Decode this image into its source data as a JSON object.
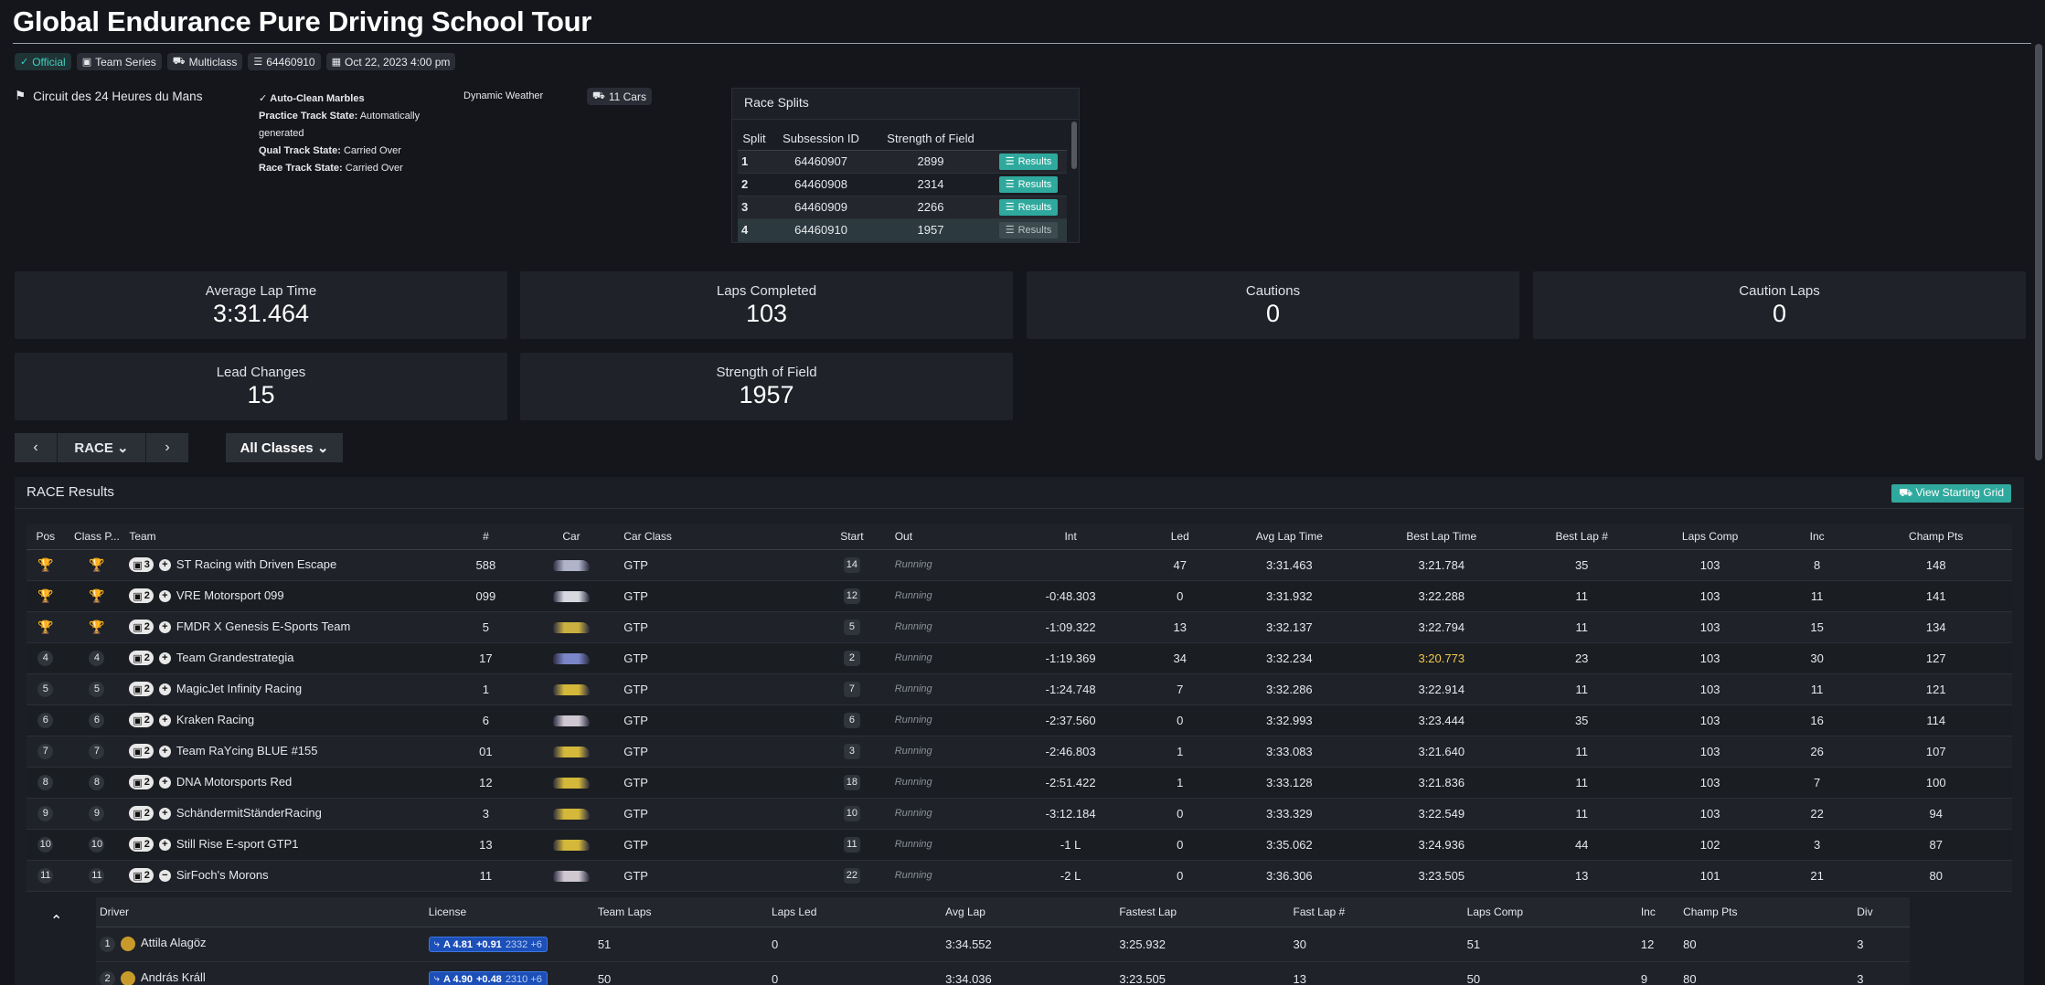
{
  "title": "Global Endurance Pure Driving School Tour",
  "badges": {
    "official": "Official",
    "series": "Team Series",
    "multiclass": "Multiclass",
    "session_id": "64460910",
    "date": "Oct 22, 2023 4:00 pm"
  },
  "info": {
    "track": "Circuit des 24 Heures du Mans",
    "marbles": "Auto-Clean Marbles",
    "practice_label": "Practice Track State:",
    "practice_value": "Automatically generated",
    "qual_label": "Qual Track State:",
    "qual_value": "Carried Over",
    "race_label": "Race Track State:",
    "race_value": "Carried Over",
    "weather": "Dynamic Weather",
    "cars": "11 Cars"
  },
  "splits": {
    "title": "Race Splits",
    "headers": [
      "Split",
      "Subsession ID",
      "Strength of Field",
      ""
    ],
    "button_label": "Results",
    "rows": [
      {
        "split": "1",
        "id": "64460907",
        "sof": "2899"
      },
      {
        "split": "2",
        "id": "64460908",
        "sof": "2314"
      },
      {
        "split": "3",
        "id": "64460909",
        "sof": "2266"
      },
      {
        "split": "4",
        "id": "64460910",
        "sof": "1957"
      }
    ]
  },
  "stats": [
    {
      "label": "Average Lap Time",
      "value": "3:31.464"
    },
    {
      "label": "Laps Completed",
      "value": "103"
    },
    {
      "label": "Cautions",
      "value": "0"
    },
    {
      "label": "Caution Laps",
      "value": "0"
    },
    {
      "label": "Lead Changes",
      "value": "15"
    },
    {
      "label": "Strength of Field",
      "value": "1957"
    }
  ],
  "selector": {
    "session": "RACE",
    "classes": "All Classes"
  },
  "results": {
    "title": "RACE Results",
    "grid_button": "View Starting Grid",
    "headers": [
      "Pos",
      "Class P...",
      "Team",
      "#",
      "Car",
      "Car Class",
      "Start",
      "Out",
      "Int",
      "Led",
      "Avg Lap Time",
      "Best Lap Time",
      "Best Lap #",
      "Laps Comp",
      "Inc",
      "Champ Pts"
    ],
    "rows": [
      {
        "pos": "1",
        "cpos": "1",
        "drivers": "3",
        "team": "ST Racing with Driven Escape",
        "num": "588",
        "car_color": "#b0b4c8",
        "cls": "GTP",
        "start": "14",
        "out": "Running",
        "int": "",
        "led": "47",
        "avg": "3:31.463",
        "best": "3:21.784",
        "bestlap": "35",
        "laps": "103",
        "inc": "8",
        "pts": "148"
      },
      {
        "pos": "2",
        "cpos": "2",
        "drivers": "2",
        "team": "VRE Motorsport 099",
        "num": "099",
        "car_color": "#d8d8e0",
        "cls": "GTP",
        "start": "12",
        "out": "Running",
        "int": "-0:48.303",
        "led": "0",
        "avg": "3:31.932",
        "best": "3:22.288",
        "bestlap": "11",
        "laps": "103",
        "inc": "11",
        "pts": "141"
      },
      {
        "pos": "3",
        "cpos": "3",
        "drivers": "2",
        "team": "FMDR X Genesis E-Sports Team",
        "num": "5",
        "car_color": "#c9b040",
        "cls": "GTP",
        "start": "5",
        "out": "Running",
        "int": "-1:09.322",
        "led": "13",
        "avg": "3:32.137",
        "best": "3:22.794",
        "bestlap": "11",
        "laps": "103",
        "inc": "15",
        "pts": "134"
      },
      {
        "pos": "4",
        "cpos": "4",
        "drivers": "2",
        "team": "Team Grandestrategia",
        "num": "17",
        "car_color": "#7a86c8",
        "cls": "GTP",
        "start": "2",
        "out": "Running",
        "int": "-1:19.369",
        "led": "34",
        "avg": "3:32.234",
        "best": "3:20.773",
        "bestlap": "23",
        "laps": "103",
        "inc": "30",
        "pts": "127"
      },
      {
        "pos": "5",
        "cpos": "5",
        "drivers": "2",
        "team": "MagicJet Infinity Racing",
        "num": "1",
        "car_color": "#d4b83a",
        "cls": "GTP",
        "start": "7",
        "out": "Running",
        "int": "-1:24.748",
        "led": "7",
        "avg": "3:32.286",
        "best": "3:22.914",
        "bestlap": "11",
        "laps": "103",
        "inc": "11",
        "pts": "121"
      },
      {
        "pos": "6",
        "cpos": "6",
        "drivers": "2",
        "team": "Kraken Racing",
        "num": "6",
        "car_color": "#d0c8d0",
        "cls": "GTP",
        "start": "6",
        "out": "Running",
        "int": "-2:37.560",
        "led": "0",
        "avg": "3:32.993",
        "best": "3:23.444",
        "bestlap": "35",
        "laps": "103",
        "inc": "16",
        "pts": "114"
      },
      {
        "pos": "7",
        "cpos": "7",
        "drivers": "2",
        "team": "Team RaYcing BLUE #155",
        "num": "01",
        "car_color": "#d4b83a",
        "cls": "GTP",
        "start": "3",
        "out": "Running",
        "int": "-2:46.803",
        "led": "1",
        "avg": "3:33.083",
        "best": "3:21.640",
        "bestlap": "11",
        "laps": "103",
        "inc": "26",
        "pts": "107"
      },
      {
        "pos": "8",
        "cpos": "8",
        "drivers": "2",
        "team": "DNA Motorsports Red",
        "num": "12",
        "car_color": "#d4b83a",
        "cls": "GTP",
        "start": "18",
        "out": "Running",
        "int": "-2:51.422",
        "led": "1",
        "avg": "3:33.128",
        "best": "3:21.836",
        "bestlap": "11",
        "laps": "103",
        "inc": "7",
        "pts": "100"
      },
      {
        "pos": "9",
        "cpos": "9",
        "drivers": "2",
        "team": "SchändermitStänderRacing",
        "num": "3",
        "car_color": "#d4b83a",
        "cls": "GTP",
        "start": "10",
        "out": "Running",
        "int": "-3:12.184",
        "led": "0",
        "avg": "3:33.329",
        "best": "3:22.549",
        "bestlap": "11",
        "laps": "103",
        "inc": "22",
        "pts": "94"
      },
      {
        "pos": "10",
        "cpos": "10",
        "drivers": "2",
        "team": "Still Rise E-sport GTP1",
        "num": "13",
        "car_color": "#d4b83a",
        "cls": "GTP",
        "start": "11",
        "out": "Running",
        "int": "-1 L",
        "led": "0",
        "avg": "3:35.062",
        "best": "3:24.936",
        "bestlap": "44",
        "laps": "102",
        "inc": "3",
        "pts": "87"
      },
      {
        "pos": "11",
        "cpos": "11",
        "drivers": "2",
        "team": "SirFoch's Morons",
        "num": "11",
        "car_color": "#d0c8d0",
        "cls": "GTP",
        "start": "22",
        "out": "Running",
        "int": "-2 L",
        "led": "0",
        "avg": "3:36.306",
        "best": "3:23.505",
        "bestlap": "13",
        "laps": "101",
        "inc": "21",
        "pts": "80"
      }
    ]
  },
  "drivers": {
    "headers": [
      "Driver",
      "License",
      "Team Laps",
      "Laps Led",
      "Avg Lap",
      "Fastest Lap",
      "Fast Lap #",
      "Laps Comp",
      "Inc",
      "Champ Pts",
      "Div"
    ],
    "rows": [
      {
        "num": "1",
        "name": "Attila Alagöz",
        "lic": "A 4.81",
        "ir": "+0.91",
        "irating": "2332 +6",
        "tlaps": "51",
        "led": "0",
        "avg": "3:34.552",
        "fast": "3:25.932",
        "fastlap": "30",
        "laps": "51",
        "inc": "12",
        "pts": "80",
        "div": "3"
      },
      {
        "num": "2",
        "name": "András Králl",
        "lic": "A 4.90",
        "ir": "+0.48",
        "irating": "2310 +6",
        "tlaps": "50",
        "led": "0",
        "avg": "3:34.036",
        "fast": "3:23.505",
        "fastlap": "13",
        "laps": "50",
        "inc": "9",
        "pts": "80",
        "div": "3"
      }
    ]
  }
}
